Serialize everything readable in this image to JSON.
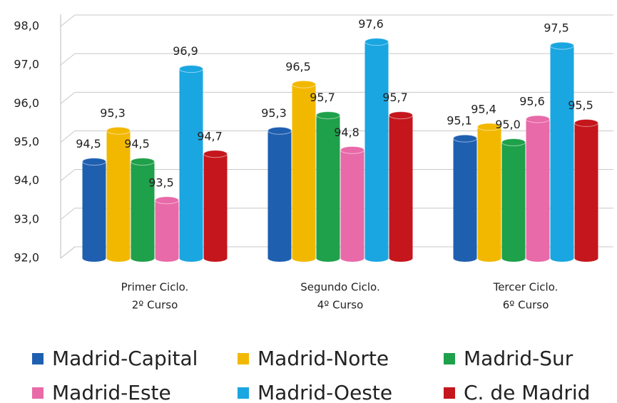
{
  "chart_data": {
    "type": "bar",
    "categories": [
      [
        "Primer Ciclo.",
        "2º Curso"
      ],
      [
        "Segundo Ciclo.",
        "4º Curso"
      ],
      [
        "Tercer Ciclo.",
        "6º Curso"
      ]
    ],
    "series": [
      {
        "name": "Madrid-Capital",
        "color": "#1f5fb0",
        "values": [
          94.5,
          95.3,
          95.1
        ],
        "value_labels": [
          "94,5",
          "95,3",
          "95,1"
        ]
      },
      {
        "name": "Madrid-Norte",
        "color": "#f2b800",
        "values": [
          95.3,
          96.5,
          95.4
        ],
        "value_labels": [
          "95,3",
          "96,5",
          "95,4"
        ]
      },
      {
        "name": "Madrid-Sur",
        "color": "#1fa04a",
        "values": [
          94.5,
          95.7,
          95.0
        ],
        "value_labels": [
          "94,5",
          "95,7",
          "95,0"
        ]
      },
      {
        "name": "Madrid-Este",
        "color": "#e86aa8",
        "values": [
          93.5,
          94.8,
          95.6
        ],
        "value_labels": [
          "93,5",
          "94,8",
          "95,6"
        ]
      },
      {
        "name": "Madrid-Oeste",
        "color": "#1aa6e0",
        "values": [
          96.9,
          97.6,
          97.5
        ],
        "value_labels": [
          "96,9",
          "97,6",
          "97,5"
        ]
      },
      {
        "name": "C. de Madrid",
        "color": "#c4161c",
        "values": [
          94.7,
          95.7,
          95.5
        ],
        "value_labels": [
          "94,7",
          "95,7",
          "95,5"
        ]
      }
    ],
    "ylim": [
      92,
      98
    ],
    "yticks": [
      {
        "value": 92,
        "label": "92,0"
      },
      {
        "value": 93,
        "label": "93,0"
      },
      {
        "value": 94,
        "label": "94,0"
      },
      {
        "value": 95,
        "label": "95,0"
      },
      {
        "value": 96,
        "label": "96,0"
      },
      {
        "value": 97,
        "label": "97,0"
      },
      {
        "value": 98,
        "label": "98,0"
      }
    ],
    "grid": true
  }
}
